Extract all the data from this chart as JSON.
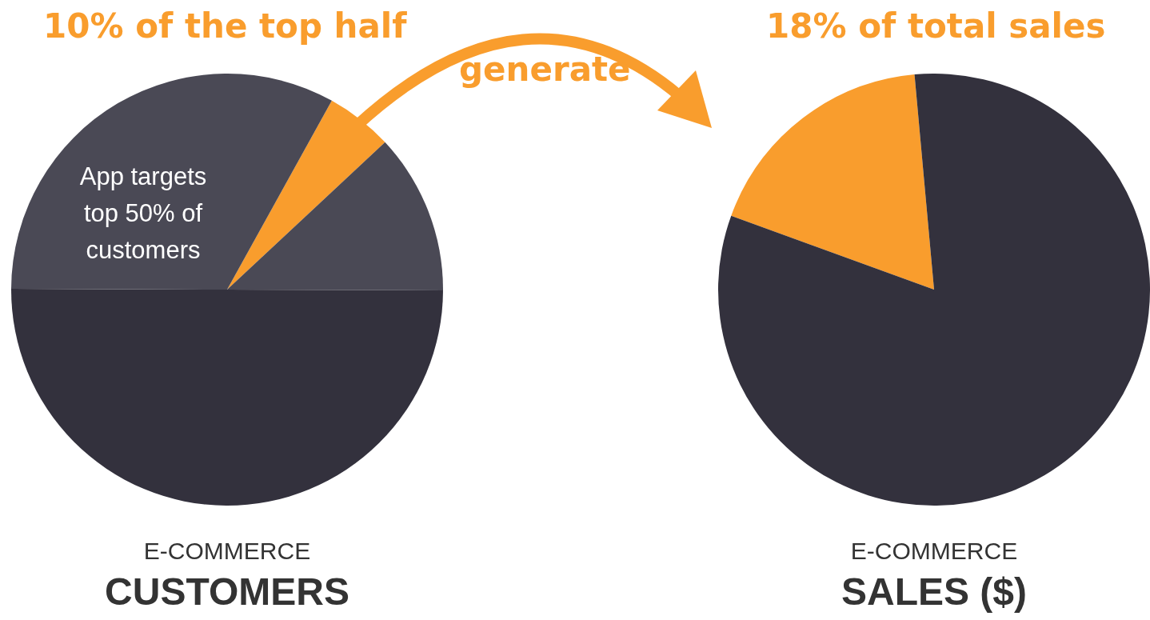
{
  "chart_data": [
    {
      "type": "pie",
      "title": "CUSTOMERS",
      "subtitle": "E-COMMERCE",
      "categories": [
        null,
        null,
        null,
        null
      ],
      "values": [
        5,
        12,
        50,
        33
      ],
      "colors": [
        "#f99d2d",
        "#4a4955",
        "#33313d",
        "#4a4955"
      ],
      "legend": false,
      "annotations": [
        "10% of the top half",
        "App targets top 50% of customers",
        "generate"
      ]
    },
    {
      "type": "pie",
      "title": "SALES ($)",
      "subtitle": "E-COMMERCE",
      "categories": [
        null,
        null
      ],
      "values": [
        18,
        82
      ],
      "colors": [
        "#f99d2d",
        "#33313d"
      ],
      "legend": false,
      "annotations": [
        "18% of total sales"
      ]
    }
  ]
}
